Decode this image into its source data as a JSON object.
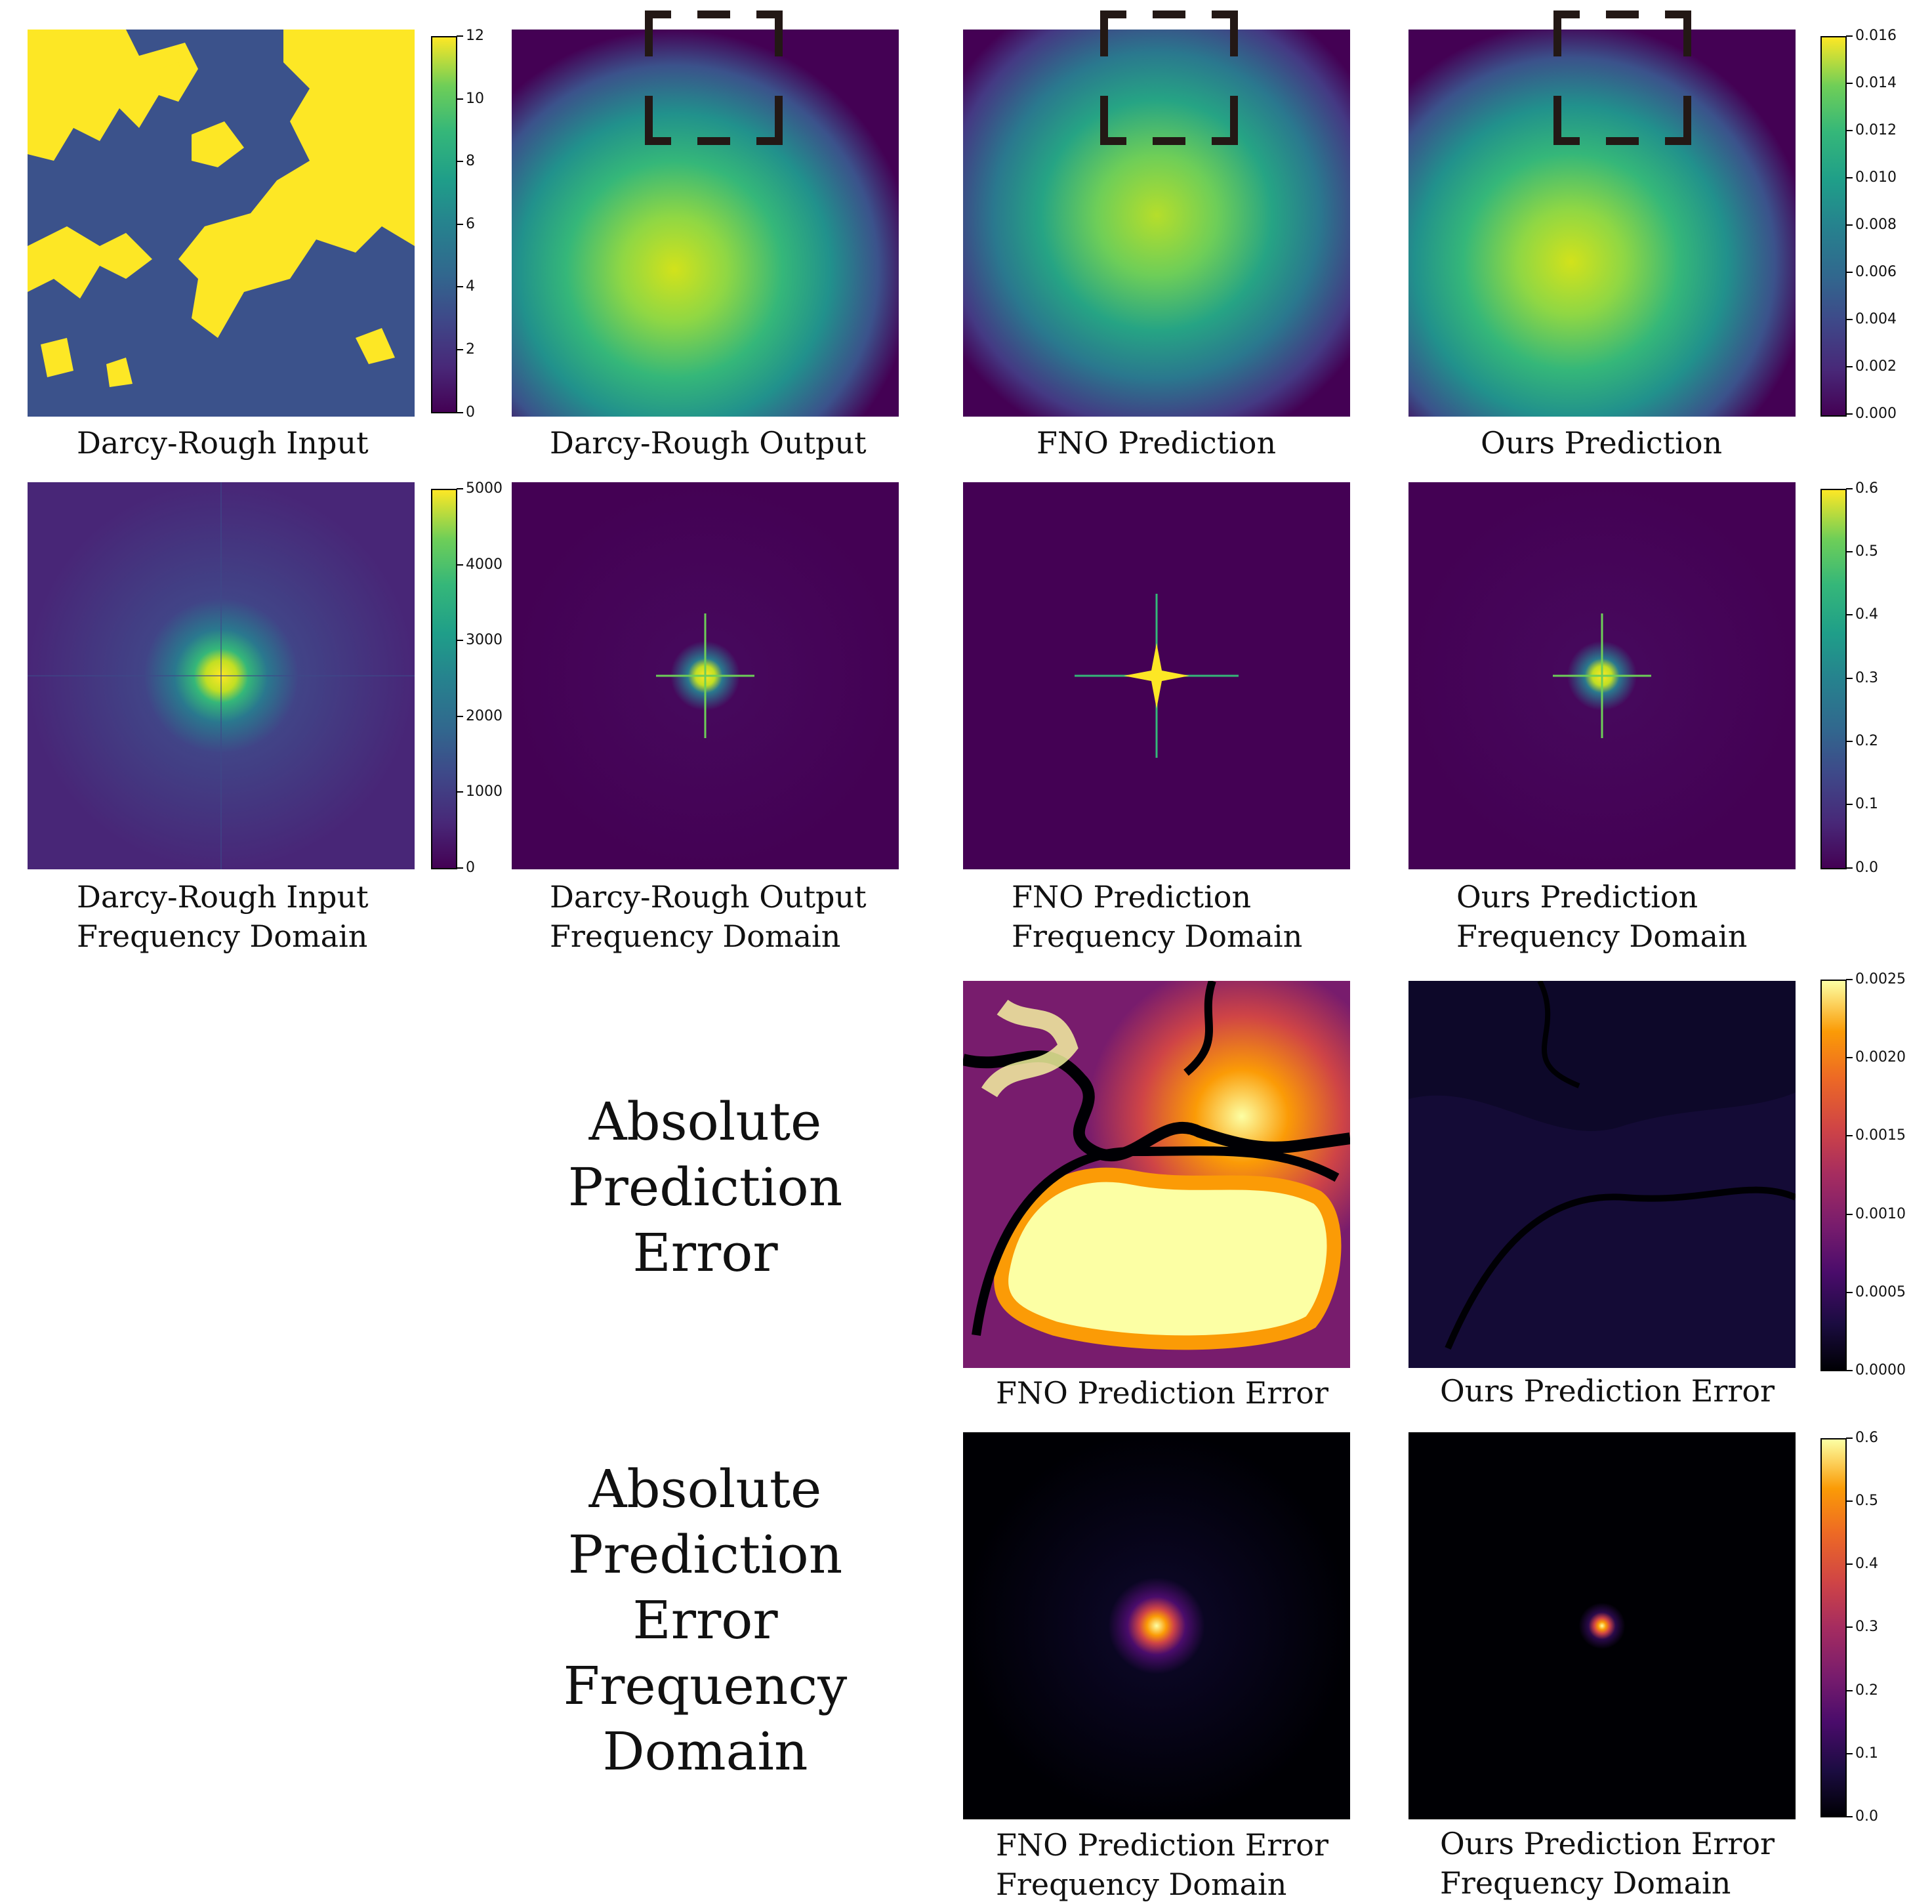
{
  "captions": {
    "input": "Darcy-Rough Input",
    "output": "Darcy-Rough Output",
    "fno_pred": "FNO Prediction",
    "ours_pred": "Ours Prediction",
    "input_freq_1": "Darcy-Rough Input",
    "input_freq_2": "Frequency Domain",
    "output_freq_1": "Darcy-Rough Output",
    "output_freq_2": "Frequency Domain",
    "fno_freq_1": "FNO Prediction",
    "fno_freq_2": "Frequency Domain",
    "ours_freq_1": "Ours Prediction",
    "ours_freq_2": "Frequency Domain",
    "fno_err": "FNO Prediction Error",
    "ours_err": "Ours Prediction Error",
    "fno_err_freq_1": "FNO Prediction Error",
    "fno_err_freq_2": "Frequency Domain",
    "ours_err_freq_1": "Ours Prediction Error",
    "ours_err_freq_2": "Frequency Domain"
  },
  "row_labels": {
    "error": [
      "Absolute",
      "Prediction",
      "Error"
    ],
    "error_freq": [
      "Absolute",
      "Prediction",
      "Error",
      "Frequency",
      "Domain"
    ]
  },
  "colorbars": {
    "input": {
      "colormap": "viridis",
      "ticks": [
        "12",
        "10",
        "8",
        "6",
        "4",
        "2",
        "0"
      ]
    },
    "output": {
      "colormap": "viridis",
      "ticks": [
        "0.016",
        "0.014",
        "0.012",
        "0.010",
        "0.008",
        "0.006",
        "0.004",
        "0.002",
        "0.000"
      ]
    },
    "input_freq": {
      "colormap": "viridis",
      "ticks": [
        "5000",
        "4000",
        "3000",
        "2000",
        "1000",
        "0"
      ]
    },
    "output_freq": {
      "colormap": "viridis",
      "ticks": [
        "0.6",
        "0.5",
        "0.4",
        "0.3",
        "0.2",
        "0.1",
        "0.0"
      ]
    },
    "error": {
      "colormap": "inferno",
      "ticks": [
        "0.0025",
        "0.0020",
        "0.0015",
        "0.0010",
        "0.0005",
        "0.0000"
      ]
    },
    "error_freq": {
      "colormap": "inferno",
      "ticks": [
        "0.6",
        "0.5",
        "0.4",
        "0.3",
        "0.2",
        "0.1",
        "0.0"
      ]
    }
  }
}
